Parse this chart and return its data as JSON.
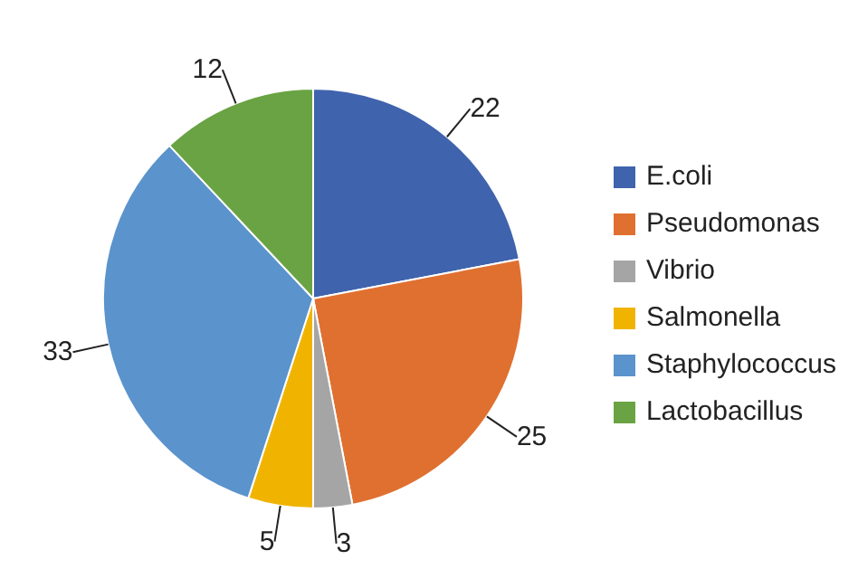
{
  "chart_data": {
    "type": "pie",
    "categories": [
      "E.coli",
      "Pseudomonas",
      "Vibrio",
      "Salmonella",
      "Staphylococcus",
      "Lactobacillus"
    ],
    "values": [
      22,
      25,
      3,
      5,
      33,
      12
    ],
    "colors": [
      "#3f63ad",
      "#e07030",
      "#a5a5a5",
      "#f0b400",
      "#5b93cc",
      "#6aa343"
    ],
    "data_labels": true,
    "legend": "right"
  }
}
